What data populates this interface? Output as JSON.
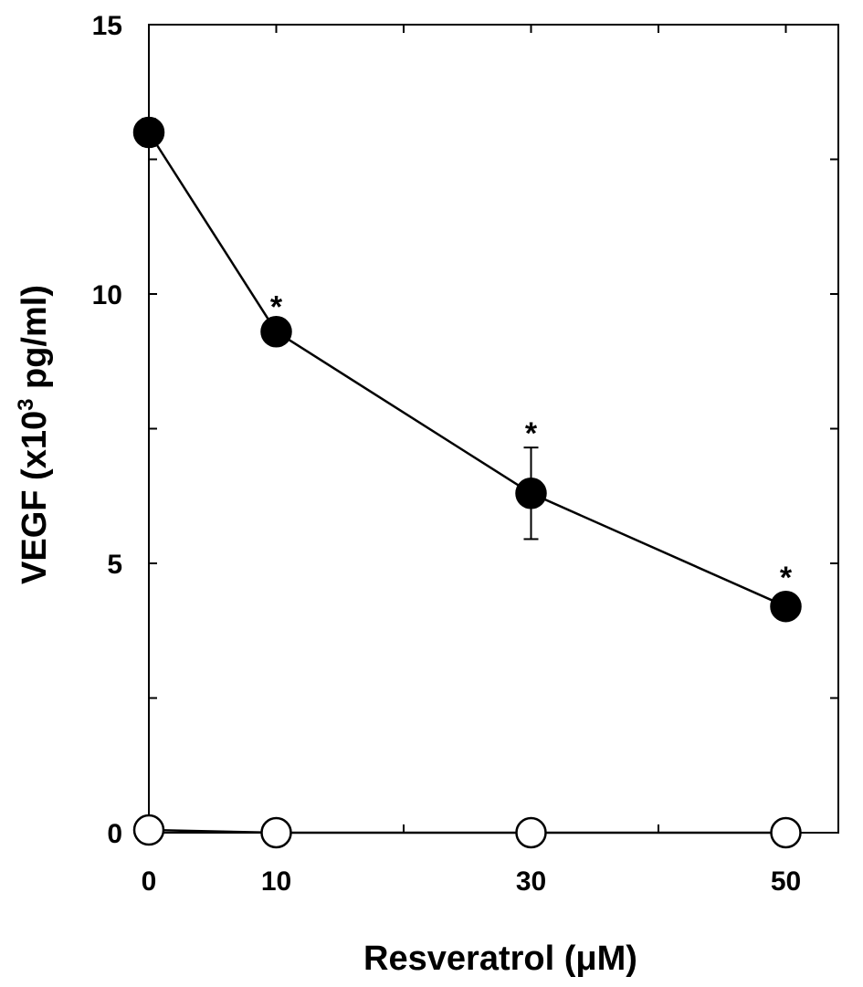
{
  "chart_data": {
    "type": "line",
    "title": "",
    "xlabel": "Resveratrol (μM)",
    "ylabel_main": "VEGF  (x10",
    "ylabel_sup": "3",
    "ylabel_tail": " pg/ml)",
    "x_ticks": [
      0,
      10,
      30,
      50
    ],
    "x_tick_labels": [
      "0",
      "10",
      "30",
      "50"
    ],
    "y_ticks": [
      0,
      5,
      10,
      15
    ],
    "y_tick_labels": [
      "0",
      "5",
      "10",
      "15"
    ],
    "xlim": [
      0,
      54
    ],
    "ylim": [
      0,
      15
    ],
    "y_minor_ticks": [
      2.5,
      7.5,
      12.5
    ],
    "x_minor_ticks": [
      20,
      40
    ],
    "grid": false,
    "series": [
      {
        "marker": "filled-circle",
        "color": "#000000",
        "x": [
          0,
          10,
          30,
          50
        ],
        "y": [
          13.0,
          9.3,
          6.3,
          4.2
        ],
        "error": [
          0.25,
          0.2,
          0.85,
          0.05
        ],
        "significance": [
          "",
          "*",
          "*",
          "*"
        ]
      },
      {
        "marker": "open-circle",
        "color": "#000000",
        "x": [
          0,
          10,
          30,
          50
        ],
        "y": [
          0.05,
          0.0,
          0.0,
          0.0
        ],
        "error": [
          0,
          0,
          0,
          0
        ],
        "significance": [
          "",
          "",
          "",
          ""
        ]
      }
    ]
  }
}
